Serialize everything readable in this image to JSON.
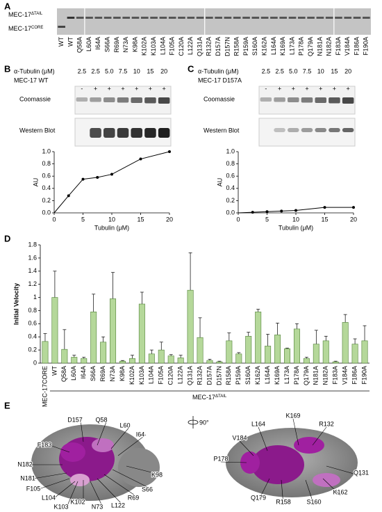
{
  "panel_letters": [
    "A",
    "B",
    "C",
    "D",
    "E"
  ],
  "gel_a": {
    "label_tail": {
      "base": "MEC-17",
      "sup": "ΔTAIL"
    },
    "label_core": {
      "base": "MEC-17",
      "sup": "CORE"
    },
    "lanes": [
      "WT",
      "WT",
      "Q58A",
      "L60A",
      "I64A",
      "S66A",
      "R69A",
      "N73A",
      "K98A",
      "K102A",
      "K103A",
      "L104A",
      "F105A",
      "C120A",
      "L122A",
      "Q131A",
      "R132A",
      "D157A",
      "D157N",
      "R158A",
      "P159A",
      "S160A",
      "K162A",
      "L164A",
      "K169A",
      "L173A",
      "P178A",
      "Q179A",
      "N181A",
      "N182A",
      "F183A",
      "V184A",
      "F186A",
      "F190A"
    ]
  },
  "assays": [
    {
      "tubulin_label": "α-Tubulin (μM)",
      "concentrations": [
        "2.5",
        "2.5",
        "5.0",
        "7.5",
        "10",
        "15",
        "20"
      ],
      "enzyme_label": "MEC-17 WT",
      "signs": [
        "-",
        "+",
        "+",
        "+",
        "+",
        "+",
        "+"
      ],
      "gels": [
        "Coomassie",
        "Western Blot"
      ]
    },
    {
      "tubulin_label": "α-Tubulin (μM)",
      "concentrations": [
        "2.5",
        "2.5",
        "5.0",
        "7.5",
        "10",
        "15",
        "20"
      ],
      "enzyme_label": "MEC-17 D157A",
      "signs": [
        "-",
        "+",
        "+",
        "+",
        "+",
        "+",
        "+"
      ],
      "gels": [
        "Coomassie",
        "Western Blot"
      ]
    }
  ],
  "chart_data": [
    {
      "type": "scatter",
      "xlabel": "Tubulin (μM)",
      "ylabel": "AU",
      "x": [
        2.5,
        5,
        7.5,
        10,
        15,
        20
      ],
      "values": [
        0.28,
        0.55,
        0.58,
        0.63,
        0.88,
        1.0
      ],
      "color": "#000000",
      "xlim": [
        0,
        20
      ],
      "ylim": [
        0,
        1
      ],
      "xticks": [
        0,
        5,
        10,
        15,
        20
      ],
      "yticks": [
        {
          "value": 0,
          "label": "0.0"
        },
        0.2,
        0.4,
        0.6,
        0.8,
        {
          "value": 1,
          "label": "1.0"
        }
      ]
    },
    {
      "type": "scatter",
      "xlabel": "Tubulin (μM)",
      "ylabel": "AU",
      "x": [
        2.5,
        5,
        7.5,
        10,
        15,
        20
      ],
      "values": [
        0.01,
        0.02,
        0.03,
        0.04,
        0.09,
        0.09
      ],
      "color": "#000000",
      "xlim": [
        0,
        20
      ],
      "ylim": [
        0,
        1
      ],
      "xticks": [
        0,
        5,
        10,
        15,
        20
      ],
      "yticks": [
        {
          "value": 0,
          "label": "0.0"
        },
        0.2,
        0.4,
        0.6,
        0.8,
        {
          "value": 1,
          "label": "1.0"
        }
      ]
    },
    {
      "type": "bar",
      "ylabel": "Initial Velocity",
      "color": "#b5d89a",
      "categories": [
        "MEC-17CORE",
        "WT",
        "Q58A",
        "L60A",
        "I64A",
        "S66A",
        "R69A",
        "N73A",
        "K98A",
        "K102A",
        "K103A",
        "L104A",
        "F105A",
        "C120A",
        "L122A",
        "Q131A",
        "R132A",
        "D157A",
        "D157N",
        "R158A",
        "P159A",
        "S160A",
        "K162A",
        "L164A",
        "K169A",
        "L173A",
        "P178A",
        "Q179A",
        "N181A",
        "N182A",
        "F183A",
        "V184A",
        "F186A",
        "F190A"
      ],
      "values": [
        0.33,
        1.0,
        0.21,
        0.09,
        0.07,
        0.78,
        0.32,
        0.98,
        0.03,
        0.07,
        0.9,
        0.14,
        0.2,
        0.11,
        0.08,
        1.11,
        0.39,
        0.04,
        0.02,
        0.34,
        0.14,
        0.41,
        0.78,
        0.26,
        0.43,
        0.22,
        0.52,
        0.07,
        0.29,
        0.34,
        0.02,
        0.62,
        0.29,
        0.34
      ],
      "errors": [
        0.12,
        0.4,
        0.3,
        0.03,
        0.02,
        0.27,
        0.08,
        0.4,
        0.01,
        0.05,
        0.18,
        0.06,
        0.12,
        0.02,
        0.04,
        0.57,
        0.3,
        0.02,
        0.01,
        0.12,
        0.02,
        0.06,
        0.04,
        0.18,
        0.18,
        0.01,
        0.08,
        0.02,
        0.21,
        0.07,
        0.01,
        0.12,
        0.08,
        0.23
      ],
      "ylim": [
        0,
        1.8
      ],
      "yticks": [
        0,
        0.2,
        0.4,
        0.6,
        0.8,
        1,
        1.2,
        1.4,
        1.6,
        1.8
      ],
      "group_label": {
        "base": "MEC-17",
        "sup": "ΔTAIL"
      }
    }
  ],
  "structure": {
    "rotation": "90°",
    "left_labels": [
      "D157",
      "Q58",
      "L60",
      "I64",
      "F183",
      "N182",
      "K98",
      "N181",
      "S66",
      "F105",
      "R69",
      "L104",
      "L122",
      "K102",
      "K103",
      "N73"
    ],
    "right_labels": [
      "L164",
      "K169",
      "R132",
      "V184",
      "P178",
      "Q131",
      "K162",
      "Q179",
      "R158",
      "S160"
    ]
  }
}
